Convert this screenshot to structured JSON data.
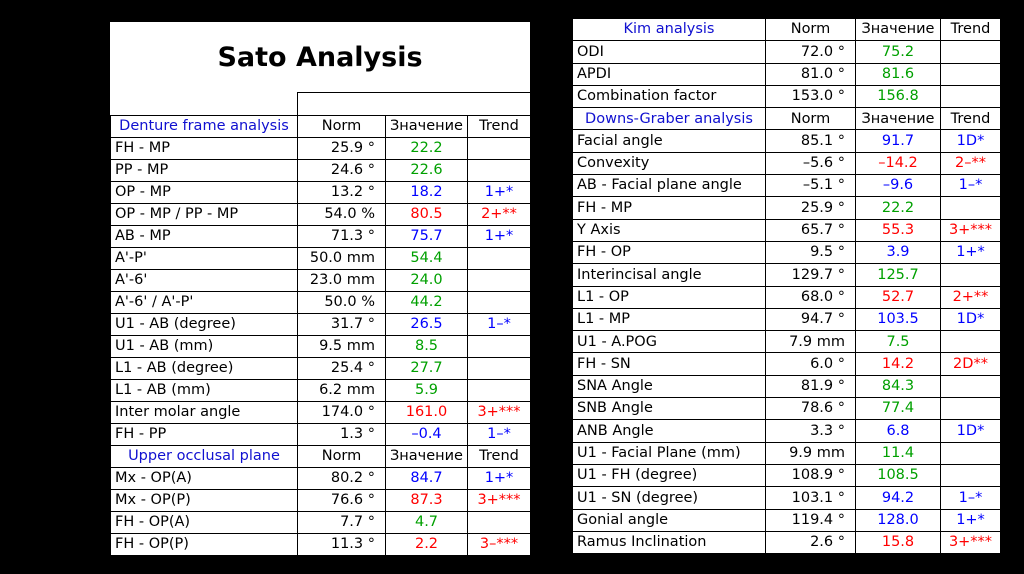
{
  "sato": {
    "title": "Sato Analysis",
    "sections": [
      {
        "header": [
          "Denture frame analysis",
          "Norm",
          "Значение",
          "Trend"
        ],
        "rows": [
          {
            "label": "FH - MP",
            "norm": "25.9 °",
            "value": "22.2",
            "color": "#00a000"
          },
          {
            "label": "PP - MP",
            "norm": "24.6 °",
            "value": "22.6",
            "color": "#00a000"
          },
          {
            "label": "OP - MP",
            "norm": "13.2 °",
            "value": "18.2",
            "color": "#0000ff",
            "trend": "1+*"
          },
          {
            "label": "OP - MP / PP - MP",
            "norm": "54.0 %",
            "value": "80.5",
            "color": "#ff0000",
            "trend": "2+**"
          },
          {
            "label": "AB - MP",
            "norm": "71.3 °",
            "value": "75.7",
            "color": "#0000ff",
            "trend": "1+*"
          },
          {
            "label": "A'-P'",
            "norm": "50.0 mm",
            "value": "54.4",
            "color": "#00a000"
          },
          {
            "label": "A'-6'",
            "norm": "23.0 mm",
            "value": "24.0",
            "color": "#00a000"
          },
          {
            "label": "A'-6' / A'-P'",
            "norm": "50.0 %",
            "value": "44.2",
            "color": "#00a000"
          },
          {
            "label": "U1 - AB (degree)",
            "norm": "31.7 °",
            "value": "26.5",
            "color": "#0000ff",
            "trend": "1–*"
          },
          {
            "label": "U1 - AB (mm)",
            "norm": "9.5 mm",
            "value": "8.5",
            "color": "#00a000"
          },
          {
            "label": "L1 - AB (degree)",
            "norm": "25.4 °",
            "value": "27.7",
            "color": "#00a000"
          },
          {
            "label": "L1 - AB (mm)",
            "norm": "6.2 mm",
            "value": "5.9",
            "color": "#00a000"
          },
          {
            "label": "Inter molar angle",
            "norm": "174.0 °",
            "value": "161.0",
            "color": "#ff0000",
            "trend": "3+***"
          },
          {
            "label": "FH - PP",
            "norm": "1.3 °",
            "value": "–0.4",
            "color": "#0000ff",
            "trend": "1–*"
          }
        ]
      },
      {
        "header": [
          "Upper occlusal plane",
          "Norm",
          "Значение",
          "Trend"
        ],
        "rows": [
          {
            "label": "Mx - OP(A)",
            "norm": "80.2 °",
            "value": "84.7",
            "color": "#0000ff",
            "trend": "1+*"
          },
          {
            "label": "Mx - OP(P)",
            "norm": "76.6 °",
            "value": "87.3",
            "color": "#ff0000",
            "trend": "3+***"
          },
          {
            "label": "FH - OP(A)",
            "norm": "7.7 °",
            "value": "4.7",
            "color": "#00a000"
          },
          {
            "label": "FH - OP(P)",
            "norm": "11.3 °",
            "value": "2.2",
            "color": "#ff0000",
            "trend": "3–***"
          }
        ]
      }
    ]
  },
  "kim": {
    "sections": [
      {
        "header": [
          "Kim analysis",
          "Norm",
          "Значение",
          "Trend"
        ],
        "rows": [
          {
            "label": "ODI",
            "norm": "72.0 °",
            "value": "75.2",
            "color": "#00a000"
          },
          {
            "label": "APDI",
            "norm": "81.0 °",
            "value": "81.6",
            "color": "#00a000"
          },
          {
            "label": "Combination factor",
            "norm": "153.0 °",
            "value": "156.8",
            "color": "#00a000"
          }
        ]
      },
      {
        "header": [
          "Downs-Graber analysis",
          "Norm",
          "Значение",
          "Trend"
        ],
        "rows": [
          {
            "label": "Facial angle",
            "norm": "85.1 °",
            "value": "91.7",
            "color": "#0000ff",
            "trend": "1D*"
          },
          {
            "label": "Convexity",
            "norm": "–5.6 °",
            "value": "–14.2",
            "color": "#ff0000",
            "trend": "2–**"
          },
          {
            "label": "AB - Facial plane angle",
            "norm": "–5.1 °",
            "value": "–9.6",
            "color": "#0000ff",
            "trend": "1–*"
          },
          {
            "label": "FH - MP",
            "norm": "25.9 °",
            "value": "22.2",
            "color": "#00a000"
          },
          {
            "label": "Y Axis",
            "norm": "65.7 °",
            "value": "55.3",
            "color": "#ff0000",
            "trend": "3+***"
          },
          {
            "label": "FH - OP",
            "norm": "9.5 °",
            "value": "3.9",
            "color": "#0000ff",
            "trend": "1+*"
          },
          {
            "label": "Interincisal angle",
            "norm": "129.7 °",
            "value": "125.7",
            "color": "#00a000"
          },
          {
            "label": "L1 - OP",
            "norm": "68.0 °",
            "value": "52.7",
            "color": "#ff0000",
            "trend": "2+**"
          },
          {
            "label": "L1 - MP",
            "norm": "94.7 °",
            "value": "103.5",
            "color": "#0000ff",
            "trend": "1D*"
          },
          {
            "label": "U1 - A.POG",
            "norm": "7.9 mm",
            "value": "7.5",
            "color": "#00a000"
          },
          {
            "label": "FH - SN",
            "norm": "6.0 °",
            "value": "14.2",
            "color": "#ff0000",
            "trend": "2D**"
          },
          {
            "label": "SNA Angle",
            "norm": "81.9 °",
            "value": "84.3",
            "color": "#00a000"
          },
          {
            "label": "SNB Angle",
            "norm": "78.6 °",
            "value": "77.4",
            "color": "#00a000"
          },
          {
            "label": "ANB Angle",
            "norm": "3.3 °",
            "value": "6.8",
            "color": "#0000ff",
            "trend": "1D*"
          },
          {
            "label": "U1 - Facial Plane (mm)",
            "norm": "9.9 mm",
            "value": "11.4",
            "color": "#00a000"
          },
          {
            "label": "U1 - FH (degree)",
            "norm": "108.9 °",
            "value": "108.5",
            "color": "#00a000"
          },
          {
            "label": "U1 - SN (degree)",
            "norm": "103.1 °",
            "value": "94.2",
            "color": "#0000ff",
            "trend": "1–*"
          },
          {
            "label": "Gonial angle",
            "norm": "119.4 °",
            "value": "128.0",
            "color": "#0000ff",
            "trend": "1+*"
          },
          {
            "label": "Ramus Inclination",
            "norm": "2.6 °",
            "value": "15.8",
            "color": "#ff0000",
            "trend": "3+***"
          }
        ]
      }
    ]
  }
}
